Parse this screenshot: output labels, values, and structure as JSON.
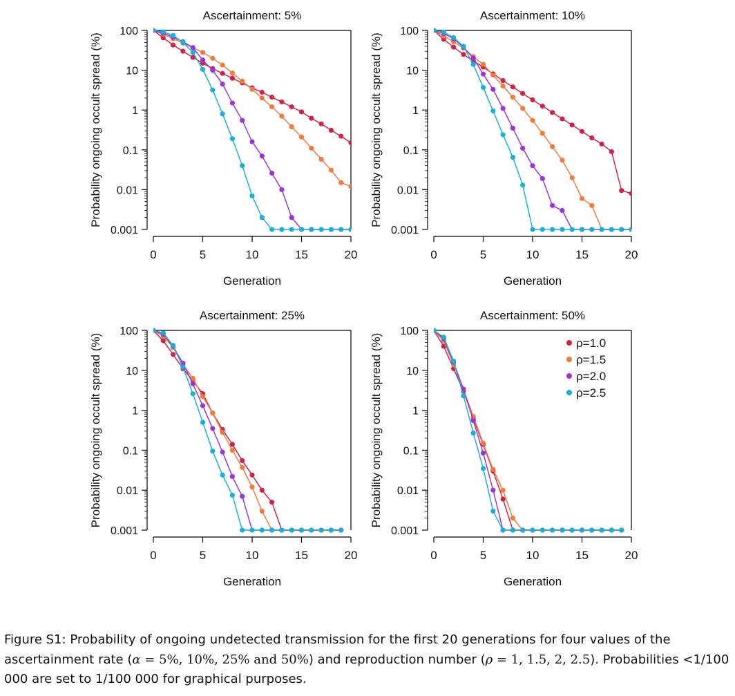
{
  "chart_data": [
    {
      "type": "line",
      "title": "Ascertainment: 5%",
      "xlabel": "Generation",
      "ylabel": "Probability ongoing occult spread (%)",
      "xlim": [
        0,
        20
      ],
      "ylim": [
        0.001,
        100
      ],
      "yscale": "log",
      "xticks": [
        "0",
        "5",
        "10",
        "15",
        "20"
      ],
      "yticks": [
        "100",
        "10",
        "1",
        "0.1",
        "0.01",
        "0.001"
      ],
      "grid": false,
      "series": [
        {
          "name": "ρ=1.0",
          "x": [
            0,
            1,
            2,
            3,
            4,
            5,
            6,
            7,
            8,
            9,
            10,
            11,
            12,
            13,
            14,
            15,
            16,
            17,
            18,
            19,
            20
          ],
          "values": [
            100,
            65,
            43,
            30,
            21,
            15,
            11,
            8.3,
            6.3,
            4.8,
            3.6,
            2.8,
            2.1,
            1.6,
            1.2,
            0.9,
            0.62,
            0.45,
            0.31,
            0.22,
            0.15
          ]
        },
        {
          "name": "ρ=1.5",
          "x": [
            0,
            1,
            2,
            3,
            4,
            5,
            6,
            7,
            8,
            9,
            10,
            11,
            12,
            13,
            14,
            15,
            16,
            17,
            18,
            19,
            20
          ],
          "values": [
            100,
            80,
            62,
            48,
            37,
            28,
            20,
            13.5,
            8.5,
            5.3,
            3.3,
            2.0,
            1.2,
            0.7,
            0.38,
            0.21,
            0.11,
            0.058,
            0.031,
            0.015,
            0.012
          ]
        },
        {
          "name": "ρ=2.0",
          "x": [
            0,
            1,
            2,
            3,
            4,
            5,
            6,
            7,
            8,
            9,
            10,
            11,
            12,
            13,
            14,
            15,
            16,
            17,
            18,
            19,
            20
          ],
          "values": [
            100,
            85,
            68,
            52,
            37,
            18,
            10,
            4.5,
            1.5,
            0.55,
            0.16,
            0.07,
            0.026,
            0.01,
            0.002,
            0.001,
            0.001,
            0.001,
            0.001,
            0.001,
            0.001
          ]
        },
        {
          "name": "ρ=2.5",
          "x": [
            0,
            1,
            2,
            3,
            4,
            5,
            6,
            7,
            8,
            9,
            10,
            11,
            12,
            13,
            14,
            15,
            16,
            17,
            18,
            19,
            20
          ],
          "values": [
            100,
            92,
            75,
            50,
            28,
            10.5,
            3.2,
            0.8,
            0.19,
            0.04,
            0.007,
            0.002,
            0.001,
            0.001,
            0.001,
            0.001,
            0.001,
            0.001,
            0.001,
            0.001,
            0.001
          ]
        }
      ]
    },
    {
      "type": "line",
      "title": "Ascertainment: 10%",
      "xlabel": "Generation",
      "ylabel": "Probability ongoing occult spread (%)",
      "xlim": [
        0,
        20
      ],
      "ylim": [
        0.001,
        100
      ],
      "yscale": "log",
      "xticks": [
        "0",
        "5",
        "10",
        "15",
        "20"
      ],
      "yticks": [
        "100",
        "10",
        "1",
        "0.1",
        "0.01",
        "0.001"
      ],
      "grid": false,
      "series": [
        {
          "name": "ρ=1.0",
          "x": [
            0,
            1,
            2,
            3,
            4,
            5,
            6,
            7,
            8,
            9,
            10,
            11,
            12,
            13,
            14,
            15,
            16,
            17,
            18,
            19,
            20
          ],
          "values": [
            100,
            60,
            38,
            25,
            17,
            12,
            8.1,
            5.5,
            3.8,
            2.6,
            1.8,
            1.25,
            0.87,
            0.6,
            0.42,
            0.29,
            0.2,
            0.14,
            0.09,
            0.0095,
            0.008
          ]
        },
        {
          "name": "ρ=1.5",
          "x": [
            0,
            1,
            2,
            3,
            4,
            5,
            6,
            7,
            8,
            9,
            10,
            11,
            12,
            13,
            14,
            15,
            16,
            17,
            18,
            19,
            20
          ],
          "values": [
            100,
            72,
            52,
            36,
            22,
            14,
            7.5,
            4,
            2.1,
            1.1,
            0.55,
            0.26,
            0.12,
            0.055,
            0.02,
            0.006,
            0.004,
            0.001,
            0.001,
            0.001,
            0.001
          ]
        },
        {
          "name": "ρ=2.0",
          "x": [
            0,
            1,
            2,
            3,
            4,
            5,
            6,
            7,
            8,
            9,
            10,
            11,
            12,
            13,
            14,
            15,
            16,
            17,
            18,
            19,
            20
          ],
          "values": [
            100,
            84,
            62,
            38,
            20,
            8,
            3.3,
            1.1,
            0.35,
            0.11,
            0.04,
            0.019,
            0.004,
            0.003,
            0.001,
            0.001,
            0.001,
            0.001,
            0.001,
            0.001,
            0.001
          ]
        },
        {
          "name": "ρ=2.5",
          "x": [
            0,
            1,
            2,
            3,
            4,
            5,
            6,
            7,
            8,
            9,
            10,
            11,
            12,
            13,
            14,
            15,
            16,
            17,
            18,
            19,
            20
          ],
          "values": [
            100,
            90,
            66,
            40,
            14,
            3.7,
            0.95,
            0.24,
            0.065,
            0.013,
            0.001,
            0.001,
            0.001,
            0.001,
            0.001,
            0.001,
            0.001,
            0.001,
            0.001,
            0.001,
            0.001
          ]
        }
      ]
    },
    {
      "type": "line",
      "title": "Ascertainment: 25%",
      "xlabel": "Generation",
      "ylabel": "Probability ongoing occult spread (%)",
      "xlim": [
        0,
        20
      ],
      "ylim": [
        0.001,
        100
      ],
      "yscale": "log",
      "xticks": [
        "0",
        "5",
        "10",
        "15",
        "20"
      ],
      "yticks": [
        "100",
        "10",
        "1",
        "0.1",
        "0.01",
        "0.001"
      ],
      "grid": false,
      "series": [
        {
          "name": "ρ=1.0",
          "x": [
            0,
            1,
            2,
            3,
            4,
            5,
            6,
            7,
            8,
            9,
            10,
            11,
            12,
            13,
            14,
            15,
            16,
            17,
            18,
            19
          ],
          "values": [
            100,
            55,
            25,
            11,
            5.5,
            2.6,
            0.85,
            0.33,
            0.14,
            0.055,
            0.024,
            0.01,
            0.005,
            0.001,
            0.001,
            0.001,
            0.001,
            0.001,
            0.001,
            0.001
          ]
        },
        {
          "name": "ρ=1.5",
          "x": [
            0,
            1,
            2,
            3,
            4,
            5,
            6,
            7,
            8,
            9,
            10,
            11,
            12,
            13,
            14,
            15,
            16,
            17,
            18,
            19
          ],
          "values": [
            100,
            72,
            37,
            14,
            6.3,
            2.2,
            0.85,
            0.28,
            0.1,
            0.037,
            0.012,
            0.003,
            0.001,
            0.001,
            0.001,
            0.001,
            0.001,
            0.001,
            0.001,
            0.001
          ]
        },
        {
          "name": "ρ=2.0",
          "x": [
            0,
            1,
            2,
            3,
            4,
            5,
            6,
            7,
            8,
            9,
            10,
            11,
            12,
            13,
            14,
            15,
            16,
            17,
            18,
            19
          ],
          "values": [
            100,
            80,
            40,
            15,
            4.6,
            1.3,
            0.35,
            0.09,
            0.022,
            0.007,
            0.001,
            0.001,
            0.001,
            0.001,
            0.001,
            0.001,
            0.001,
            0.001,
            0.001,
            0.001
          ]
        },
        {
          "name": "ρ=2.5",
          "x": [
            0,
            1,
            2,
            3,
            4,
            5,
            6,
            7,
            8,
            9,
            10,
            11,
            12,
            13,
            14,
            15,
            16,
            17,
            18,
            19
          ],
          "values": [
            100,
            86,
            42,
            12,
            2.6,
            0.5,
            0.095,
            0.024,
            0.0075,
            0.001,
            0.001,
            0.001,
            0.001,
            0.001,
            0.001,
            0.001,
            0.001,
            0.001,
            0.001,
            0.001
          ]
        }
      ]
    },
    {
      "type": "line",
      "title": "Ascertainment: 50%",
      "xlabel": "Generation",
      "ylabel": "Probability ongoing occult spread (%)",
      "xlim": [
        0,
        20
      ],
      "ylim": [
        0.001,
        100
      ],
      "yscale": "log",
      "xticks": [
        "0",
        "5",
        "10",
        "15",
        "20"
      ],
      "yticks": [
        "100",
        "10",
        "1",
        "0.1",
        "0.01",
        "0.001"
      ],
      "grid": false,
      "legend": "top-right",
      "series": [
        {
          "name": "ρ=1.0",
          "x": [
            0,
            1,
            2,
            3,
            4,
            5,
            6,
            7,
            8,
            9,
            10,
            11,
            12,
            13,
            14,
            15,
            16,
            17,
            18,
            19
          ],
          "values": [
            100,
            40,
            11,
            3,
            0.62,
            0.14,
            0.03,
            0.006,
            0.001,
            0.001,
            0.001,
            0.001,
            0.001,
            0.001,
            0.001,
            0.001,
            0.001,
            0.001,
            0.001,
            0.001
          ]
        },
        {
          "name": "ρ=1.5",
          "x": [
            0,
            1,
            2,
            3,
            4,
            5,
            6,
            7,
            8,
            9,
            10,
            11,
            12,
            13,
            14,
            15,
            16,
            17,
            18,
            19
          ],
          "values": [
            100,
            55,
            14,
            3.3,
            0.7,
            0.15,
            0.033,
            0.01,
            0.002,
            0.001,
            0.001,
            0.001,
            0.001,
            0.001,
            0.001,
            0.001,
            0.001,
            0.001,
            0.001,
            0.001
          ]
        },
        {
          "name": "ρ=2.0",
          "x": [
            0,
            1,
            2,
            3,
            4,
            5,
            6,
            7,
            8,
            9,
            10,
            11,
            12,
            13,
            14,
            15,
            16,
            17,
            18,
            19
          ],
          "values": [
            100,
            62,
            16,
            3.4,
            0.55,
            0.085,
            0.01,
            0.001,
            0.001,
            0.001,
            0.001,
            0.001,
            0.001,
            0.001,
            0.001,
            0.001,
            0.001,
            0.001,
            0.001,
            0.001
          ]
        },
        {
          "name": "ρ=2.5",
          "x": [
            0,
            1,
            2,
            3,
            4,
            5,
            6,
            7,
            8,
            9,
            10,
            11,
            12,
            13,
            14,
            15,
            16,
            17,
            18,
            19
          ],
          "values": [
            100,
            68,
            17,
            2.3,
            0.27,
            0.035,
            0.003,
            0.001,
            0.001,
            0.001,
            0.001,
            0.001,
            0.001,
            0.001,
            0.001,
            0.001,
            0.001,
            0.001,
            0.001,
            0.001
          ]
        }
      ]
    }
  ],
  "colors": {
    "ρ=1.0": "#cf2447",
    "ρ=1.5": "#f07b3c",
    "ρ=2.0": "#9b36d6",
    "ρ=2.5": "#19b0d7"
  },
  "caption": {
    "p1": "Figure S1: Probability of ongoing undetected transmission for the first 20 generations for four values of the ascertainment rate (",
    "alpha_sym": "α",
    "alpha_eq": " = 5%, 10%, 25% and 50%",
    "p2": ") and reproduction number (",
    "rho_sym": "ρ",
    "rho_eq": " = 1, 1.5, 2, 2.5",
    "p3": "). Probabilities <1/100 000 are set to 1/100 000 for graphical purposes."
  }
}
